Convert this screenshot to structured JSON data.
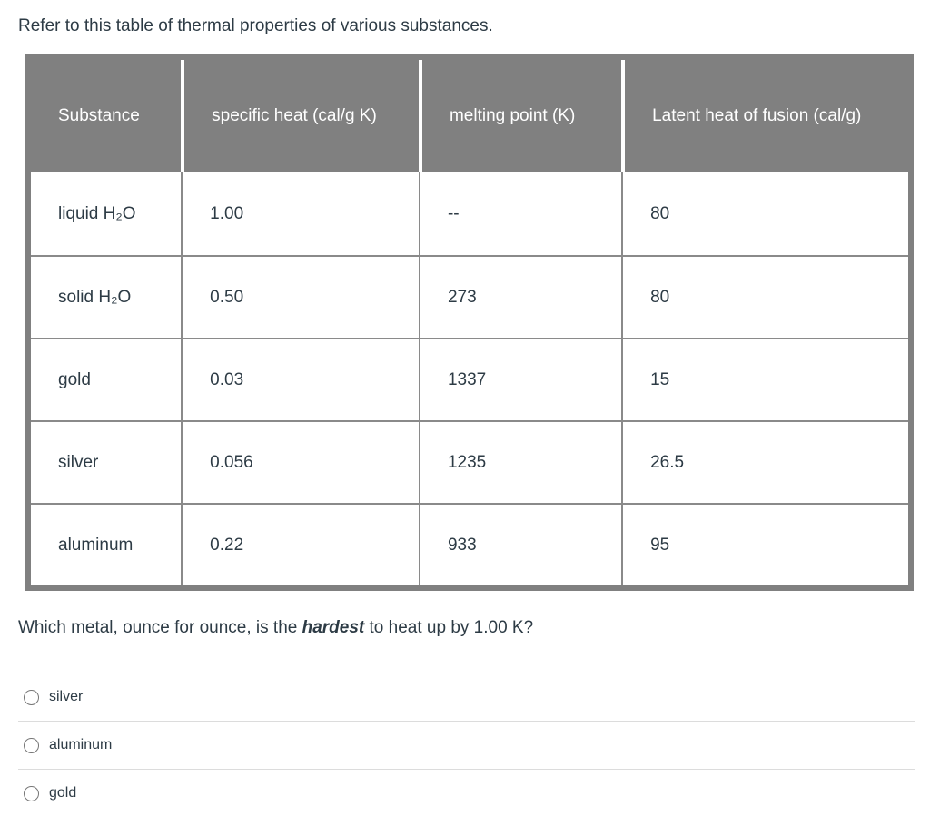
{
  "intro": "Refer to this table of thermal properties of various substances.",
  "table": {
    "columns": [
      "Substance",
      "specific heat (cal/g K)",
      "melting point (K)",
      "Latent heat of fusion (cal/g)"
    ],
    "rows": [
      [
        "liquid H₂O",
        "1.00",
        "--",
        "80"
      ],
      [
        "solid H₂O",
        "0.50",
        "273",
        "80"
      ],
      [
        "gold",
        "0.03",
        "1337",
        "15"
      ],
      [
        "silver",
        "0.056",
        "1235",
        "26.5"
      ],
      [
        "aluminum",
        "0.22",
        "933",
        "95"
      ]
    ]
  },
  "question": {
    "prefix": "Which metal, ounce for ounce, is the ",
    "emphasis": "hardest",
    "suffix": " to heat up by 1.00 K?"
  },
  "options": [
    {
      "label": "silver",
      "selected": false
    },
    {
      "label": "aluminum",
      "selected": false
    },
    {
      "label": "gold",
      "selected": false
    }
  ],
  "colors": {
    "header_bg": "#808080",
    "outer_border": "#808080",
    "cell_border": "#8a8a8a",
    "text": "#2d3b45",
    "header_text": "#ffffff",
    "divider": "#dcdcdc",
    "radio_border": "#767676"
  }
}
